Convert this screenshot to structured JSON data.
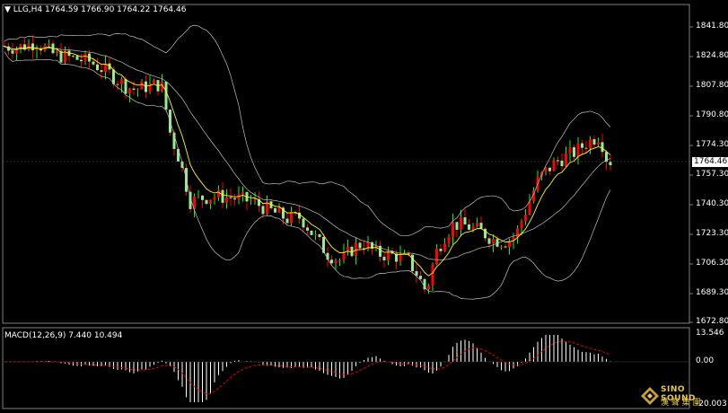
{
  "header": {
    "symbol_info": "LLG,H4  1764.59 1766.90 1764.22 1764.46"
  },
  "macd_panel": {
    "label": "MACD(12,26,9) 7.440 10.494",
    "axis_ticks": [
      "13.546",
      "0.00",
      "-20.003"
    ]
  },
  "price_axis": {
    "ticks": [
      "1841.80",
      "1824.80",
      "1807.80",
      "1790.80",
      "1774.30",
      "1757.30",
      "1740.30",
      "1723.30",
      "1706.30",
      "1689.30",
      "1672.80"
    ],
    "current_price": "1764.46"
  },
  "logo": {
    "line1": "SINO SOUND",
    "line2": "漢 聲 集 團"
  },
  "colors": {
    "bull": "#00ff00",
    "bull_body": "#ff0000",
    "bear_body": "#90ee90",
    "bands": "#c0c0c0",
    "ma": "#ffff00",
    "macd_hist": "#ffffff",
    "signal": "#ff0000"
  },
  "chart_data": {
    "type": "candlestick",
    "price_range": [
      1672.8,
      1841.8
    ],
    "macd_range": [
      -20.003,
      13.546
    ]
  }
}
